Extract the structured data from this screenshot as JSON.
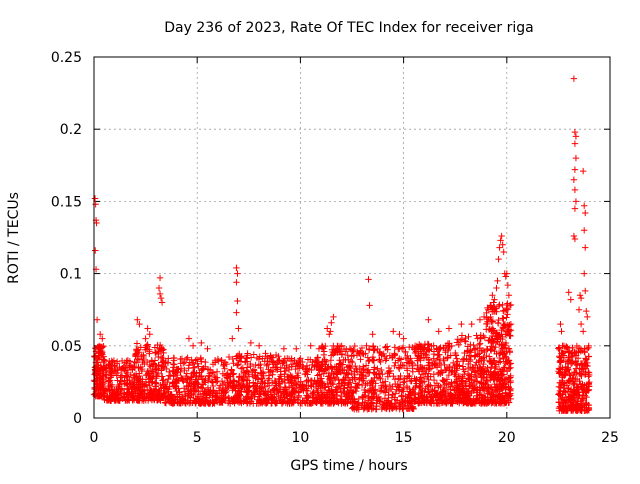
{
  "chart_data": {
    "type": "scatter",
    "title": "Day 236 of 2023, Rate Of TEC Index for receiver riga",
    "xlabel": "GPS time / hours",
    "ylabel": "ROTI / TECUs",
    "xlim": [
      0,
      25
    ],
    "ylim": [
      0,
      0.25
    ],
    "x_ticks": [
      0,
      5,
      10,
      15,
      20,
      25
    ],
    "y_ticks": [
      0,
      0.05,
      0.1,
      0.15,
      0.2,
      0.25
    ],
    "y_tick_labels": [
      "0",
      "0.05",
      "0.1",
      "0.15",
      "0.2",
      "0.25"
    ],
    "grid": true,
    "marker": "+",
    "color": "#ff0000",
    "data_gap_hours": [
      20.2,
      22.5
    ],
    "points": [
      [
        0.05,
        0.152
      ],
      [
        0.08,
        0.148
      ],
      [
        0.1,
        0.137
      ],
      [
        0.12,
        0.135
      ],
      [
        0.06,
        0.116
      ],
      [
        0.1,
        0.103
      ],
      [
        0.15,
        0.068
      ],
      [
        0.3,
        0.058
      ],
      [
        0.4,
        0.055
      ],
      [
        2.1,
        0.068
      ],
      [
        2.2,
        0.065
      ],
      [
        2.6,
        0.062
      ],
      [
        2.7,
        0.058
      ],
      [
        2.5,
        0.055
      ],
      [
        3.0,
        0.045
      ],
      [
        3.2,
        0.097
      ],
      [
        3.15,
        0.09
      ],
      [
        3.2,
        0.086
      ],
      [
        3.25,
        0.083
      ],
      [
        3.3,
        0.08
      ],
      [
        4.6,
        0.055
      ],
      [
        4.8,
        0.05
      ],
      [
        5.2,
        0.052
      ],
      [
        5.5,
        0.048
      ],
      [
        6.9,
        0.104
      ],
      [
        6.95,
        0.1
      ],
      [
        6.9,
        0.094
      ],
      [
        6.95,
        0.081
      ],
      [
        6.9,
        0.073
      ],
      [
        7.0,
        0.062
      ],
      [
        6.7,
        0.055
      ],
      [
        7.6,
        0.052
      ],
      [
        8.0,
        0.05
      ],
      [
        9.2,
        0.048
      ],
      [
        9.8,
        0.048
      ],
      [
        10.5,
        0.05
      ],
      [
        10.9,
        0.048
      ],
      [
        11.3,
        0.062
      ],
      [
        11.4,
        0.058
      ],
      [
        11.5,
        0.066
      ],
      [
        11.6,
        0.07
      ],
      [
        11.45,
        0.06
      ],
      [
        12.0,
        0.05
      ],
      [
        12.4,
        0.048
      ],
      [
        13.3,
        0.096
      ],
      [
        13.35,
        0.078
      ],
      [
        13.5,
        0.058
      ],
      [
        13.2,
        0.05
      ],
      [
        14.5,
        0.06
      ],
      [
        14.8,
        0.058
      ],
      [
        15.0,
        0.055
      ],
      [
        16.2,
        0.068
      ],
      [
        16.7,
        0.06
      ],
      [
        17.2,
        0.062
      ],
      [
        17.8,
        0.065
      ],
      [
        18.3,
        0.065
      ],
      [
        18.7,
        0.068
      ],
      [
        18.9,
        0.07
      ],
      [
        19.1,
        0.075
      ],
      [
        19.2,
        0.078
      ],
      [
        19.3,
        0.085
      ],
      [
        19.4,
        0.082
      ],
      [
        19.5,
        0.09
      ],
      [
        19.55,
        0.095
      ],
      [
        19.6,
        0.11
      ],
      [
        19.65,
        0.118
      ],
      [
        19.7,
        0.123
      ],
      [
        19.75,
        0.126
      ],
      [
        19.8,
        0.12
      ],
      [
        19.85,
        0.115
      ],
      [
        19.9,
        0.1
      ],
      [
        19.95,
        0.098
      ],
      [
        20.0,
        0.1
      ],
      [
        20.05,
        0.092
      ],
      [
        20.1,
        0.085
      ],
      [
        20.15,
        0.078
      ],
      [
        20.2,
        0.065
      ],
      [
        22.6,
        0.065
      ],
      [
        22.65,
        0.06
      ],
      [
        22.7,
        0.05
      ],
      [
        23.0,
        0.087
      ],
      [
        23.1,
        0.082
      ],
      [
        23.25,
        0.235
      ],
      [
        23.3,
        0.198
      ],
      [
        23.35,
        0.195
      ],
      [
        23.3,
        0.19
      ],
      [
        23.35,
        0.18
      ],
      [
        23.3,
        0.172
      ],
      [
        23.25,
        0.165
      ],
      [
        23.3,
        0.158
      ],
      [
        23.35,
        0.15
      ],
      [
        23.3,
        0.145
      ],
      [
        23.25,
        0.126
      ],
      [
        23.3,
        0.124
      ],
      [
        23.55,
        0.085
      ],
      [
        23.6,
        0.083
      ],
      [
        23.5,
        0.075
      ],
      [
        23.7,
        0.171
      ],
      [
        23.75,
        0.147
      ],
      [
        23.8,
        0.142
      ],
      [
        23.75,
        0.13
      ],
      [
        23.8,
        0.118
      ],
      [
        23.75,
        0.1
      ],
      [
        23.8,
        0.088
      ],
      [
        23.85,
        0.074
      ],
      [
        23.9,
        0.07
      ],
      [
        23.6,
        0.065
      ],
      [
        23.7,
        0.06
      ]
    ],
    "bands": [
      {
        "x0": 0.0,
        "x1": 0.5,
        "y0": 0.015,
        "y1": 0.05,
        "n": 140
      },
      {
        "x0": 0.5,
        "x1": 2.0,
        "y0": 0.012,
        "y1": 0.04,
        "n": 220
      },
      {
        "x0": 2.0,
        "x1": 3.4,
        "y0": 0.012,
        "y1": 0.052,
        "n": 230
      },
      {
        "x0": 3.4,
        "x1": 6.5,
        "y0": 0.01,
        "y1": 0.042,
        "n": 380
      },
      {
        "x0": 6.5,
        "x1": 9.0,
        "y0": 0.01,
        "y1": 0.045,
        "n": 330
      },
      {
        "x0": 9.0,
        "x1": 11.0,
        "y0": 0.01,
        "y1": 0.042,
        "n": 260
      },
      {
        "x0": 11.0,
        "x1": 12.5,
        "y0": 0.01,
        "y1": 0.05,
        "n": 240
      },
      {
        "x0": 12.5,
        "x1": 15.5,
        "y0": 0.006,
        "y1": 0.05,
        "n": 380
      },
      {
        "x0": 15.5,
        "x1": 17.5,
        "y0": 0.01,
        "y1": 0.052,
        "n": 300
      },
      {
        "x0": 17.5,
        "x1": 19.0,
        "y0": 0.01,
        "y1": 0.058,
        "n": 300
      },
      {
        "x0": 19.0,
        "x1": 20.2,
        "y0": 0.01,
        "y1": 0.08,
        "n": 340
      },
      {
        "x0": 22.5,
        "x1": 24.0,
        "y0": 0.005,
        "y1": 0.05,
        "n": 340
      }
    ]
  }
}
